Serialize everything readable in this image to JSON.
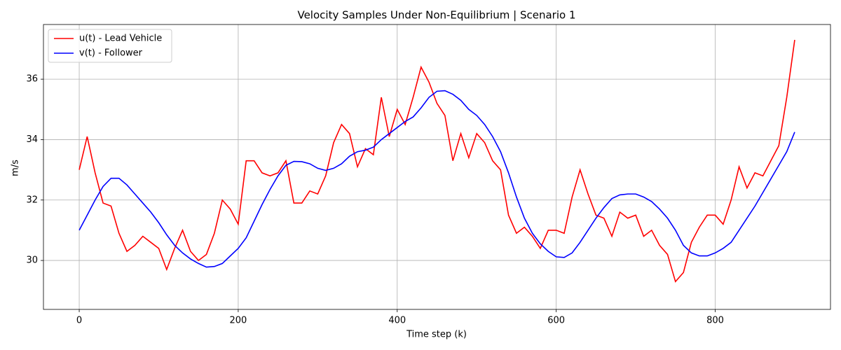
{
  "chart_data": {
    "type": "line",
    "title": "Velocity Samples Under Non-Equilibrium | Scenario 1",
    "x_label": "Time step (k)",
    "y_label": "m/s",
    "x": [
      0,
      10,
      20,
      30,
      40,
      50,
      60,
      70,
      80,
      90,
      100,
      110,
      120,
      130,
      140,
      150,
      160,
      170,
      180,
      190,
      200,
      210,
      220,
      230,
      240,
      250,
      260,
      270,
      280,
      290,
      300,
      310,
      320,
      330,
      340,
      350,
      360,
      370,
      380,
      390,
      400,
      410,
      420,
      430,
      440,
      450,
      460,
      470,
      480,
      490,
      500,
      510,
      520,
      530,
      540,
      550,
      560,
      570,
      580,
      590,
      600,
      610,
      620,
      630,
      640,
      650,
      660,
      670,
      680,
      690,
      700,
      710,
      720,
      730,
      740,
      750,
      760,
      770,
      780,
      790,
      800,
      810,
      820,
      830,
      840,
      850,
      860,
      870,
      880,
      890,
      900
    ],
    "series": [
      {
        "name": "u(t) - Lead Vehicle",
        "color": "#ff0000",
        "values": [
          33.0,
          34.1,
          32.9,
          31.9,
          31.8,
          30.9,
          30.3,
          30.5,
          30.8,
          30.6,
          30.4,
          29.7,
          30.4,
          31.0,
          30.3,
          30.0,
          30.2,
          30.9,
          32.0,
          31.7,
          31.2,
          33.3,
          33.3,
          32.9,
          32.8,
          32.9,
          33.3,
          31.9,
          31.9,
          32.3,
          32.2,
          32.8,
          33.9,
          34.5,
          34.2,
          33.1,
          33.7,
          33.5,
          35.4,
          34.1,
          35.0,
          34.5,
          35.4,
          36.4,
          35.9,
          35.2,
          34.8,
          33.3,
          34.2,
          33.4,
          34.2,
          33.9,
          33.3,
          33.0,
          31.5,
          30.9,
          31.1,
          30.8,
          30.4,
          31.0,
          31.0,
          30.9,
          32.1,
          33.0,
          32.2,
          31.5,
          31.4,
          30.8,
          31.6,
          31.4,
          31.5,
          30.8,
          31.0,
          30.5,
          30.2,
          29.3,
          29.6,
          30.6,
          31.1,
          31.5,
          31.5,
          31.2,
          32.0,
          33.1,
          32.4,
          32.9,
          32.8,
          33.3,
          33.8,
          35.4,
          37.3
        ]
      },
      {
        "name": "v(t) - Follower",
        "color": "#0000ff",
        "values": [
          31.0,
          31.5,
          32.0,
          32.45,
          32.72,
          32.72,
          32.5,
          32.2,
          31.9,
          31.6,
          31.25,
          30.85,
          30.5,
          30.25,
          30.05,
          29.9,
          29.78,
          29.8,
          29.9,
          30.15,
          30.4,
          30.75,
          31.3,
          31.85,
          32.35,
          32.8,
          33.15,
          33.28,
          33.27,
          33.2,
          33.05,
          32.98,
          33.05,
          33.2,
          33.45,
          33.6,
          33.65,
          33.75,
          34.0,
          34.2,
          34.4,
          34.6,
          34.75,
          35.05,
          35.4,
          35.6,
          35.62,
          35.5,
          35.3,
          35.0,
          34.8,
          34.5,
          34.1,
          33.6,
          32.9,
          32.1,
          31.4,
          30.9,
          30.55,
          30.3,
          30.12,
          30.1,
          30.25,
          30.6,
          31.0,
          31.4,
          31.75,
          32.05,
          32.17,
          32.2,
          32.2,
          32.1,
          31.95,
          31.7,
          31.4,
          31.0,
          30.5,
          30.25,
          30.15,
          30.15,
          30.25,
          30.4,
          30.6,
          31.0,
          31.4,
          31.8,
          32.25,
          32.7,
          33.15,
          33.6,
          34.25
        ]
      }
    ],
    "xlim": [
      -45,
      945
    ],
    "ylim": [
      28.38,
      37.81
    ],
    "xticks": [
      0,
      200,
      400,
      600,
      800
    ],
    "yticks": [
      30,
      32,
      34,
      36
    ],
    "grid": true,
    "legend": "upper left"
  }
}
